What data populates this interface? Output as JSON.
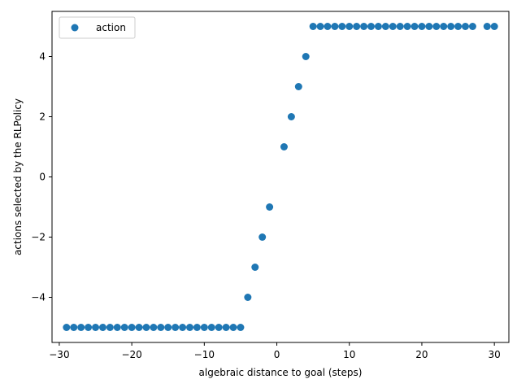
{
  "chart_data": {
    "type": "scatter",
    "xlabel": "algebraic distance to goal (steps)",
    "ylabel": "actions selected by the RLPolicy",
    "xlim": [
      -31,
      32
    ],
    "ylim": [
      -5.5,
      5.5
    ],
    "xticks": [
      -30,
      -20,
      -10,
      0,
      10,
      20,
      30
    ],
    "yticks": [
      -4,
      -2,
      0,
      2,
      4
    ],
    "legend_position": "top-left",
    "grid": false,
    "series": [
      {
        "name": "action",
        "color": "#1f77b4",
        "x": [
          -29,
          -28,
          -27,
          -26,
          -25,
          -24,
          -23,
          -22,
          -21,
          -20,
          -19,
          -18,
          -17,
          -16,
          -15,
          -14,
          -13,
          -12,
          -11,
          -10,
          -9,
          -8,
          -7,
          -6,
          -5,
          -4,
          -3,
          -2,
          -1,
          1,
          2,
          3,
          4,
          5,
          6,
          7,
          8,
          9,
          10,
          11,
          12,
          13,
          14,
          15,
          16,
          17,
          18,
          19,
          20,
          21,
          22,
          23,
          24,
          25,
          26,
          27,
          29,
          30
        ],
        "y": [
          -5,
          -5,
          -5,
          -5,
          -5,
          -5,
          -5,
          -5,
          -5,
          -5,
          -5,
          -5,
          -5,
          -5,
          -5,
          -5,
          -5,
          -5,
          -5,
          -5,
          -5,
          -5,
          -5,
          -5,
          -5,
          -4,
          -3,
          -2,
          -1,
          1,
          2,
          3,
          4,
          5,
          5,
          5,
          5,
          5,
          5,
          5,
          5,
          5,
          5,
          5,
          5,
          5,
          5,
          5,
          5,
          5,
          5,
          5,
          5,
          5,
          5,
          5,
          5,
          5
        ]
      }
    ]
  }
}
